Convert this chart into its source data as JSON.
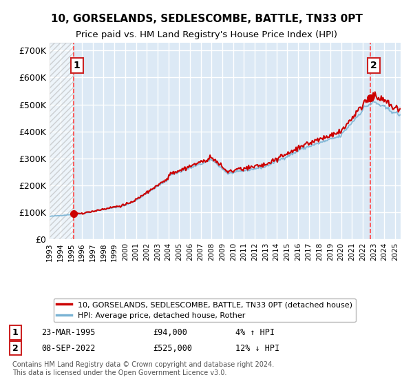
{
  "title": "10, GORSELANDS, SEDLESCOMBE, BATTLE, TN33 0PT",
  "subtitle": "Price paid vs. HM Land Registry's House Price Index (HPI)",
  "legend_line1": "10, GORSELANDS, SEDLESCOMBE, BATTLE, TN33 0PT (detached house)",
  "legend_line2": "HPI: Average price, detached house, Rother",
  "annotation1_label": "1",
  "annotation1_date": "23-MAR-1995",
  "annotation1_price": "£94,000",
  "annotation1_hpi": "4% ↑ HPI",
  "annotation2_label": "2",
  "annotation2_date": "08-SEP-2022",
  "annotation2_price": "£525,000",
  "annotation2_hpi": "12% ↓ HPI",
  "footnote": "Contains HM Land Registry data © Crown copyright and database right 2024.\nThis data is licensed under the Open Government Licence v3.0.",
  "plot_bg_color": "#dce9f5",
  "grid_color": "#ffffff",
  "red_line_color": "#cc0000",
  "blue_line_color": "#7ab3d4",
  "marker_color": "#cc0000",
  "sale1_year": 1995.22,
  "sale1_price": 94000,
  "sale2_year": 2022.69,
  "sale2_price": 525000,
  "ylim": [
    0,
    730000
  ],
  "xlim_start": 1993,
  "xlim_end": 2025.5,
  "yticks": [
    0,
    100000,
    200000,
    300000,
    400000,
    500000,
    600000,
    700000
  ]
}
